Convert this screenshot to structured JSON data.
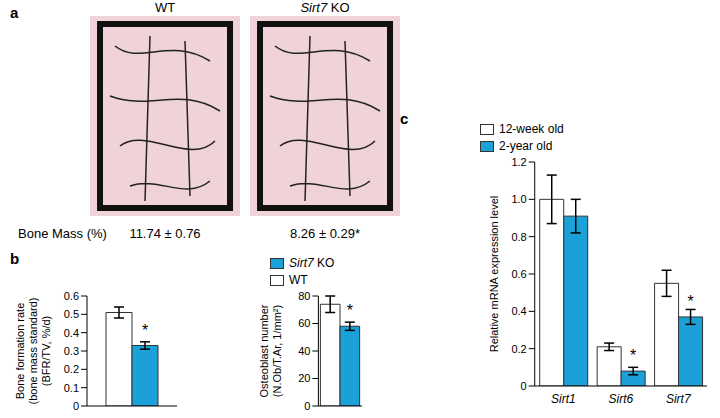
{
  "panel_a": {
    "label": "a",
    "groups": [
      "WT",
      "Sirt7 KO"
    ],
    "row_label": "Bone Mass (%)",
    "values": [
      "11.74 ± 0.76",
      "8.26 ± 0.29*"
    ]
  },
  "chart_data": [
    {
      "type": "bar",
      "panel_label": "b",
      "y_label": [
        "Bone formation rate",
        "(bone mass standard)",
        "(BFR/TV, %/d)"
      ],
      "categories": [
        null
      ],
      "series": [
        {
          "name": "WT",
          "color": "#ffffff",
          "values": [
            0.51
          ],
          "error": [
            0.03
          ]
        },
        {
          "name": "Sirt7 KO",
          "color": "#1ca0d8",
          "values": [
            0.33
          ],
          "error": [
            0.02
          ],
          "annotations": [
            "*"
          ]
        }
      ],
      "ylim": [
        0,
        0.6
      ],
      "yticks": [
        0,
        0.1,
        0.2,
        0.3,
        0.4,
        0.5,
        0.6
      ]
    },
    {
      "type": "bar",
      "y_label": [
        "Osteoblast number",
        "(N.Ob/T.Ar, 1/mm²)"
      ],
      "categories": [
        null
      ],
      "series": [
        {
          "name": "WT",
          "color": "#ffffff",
          "values": [
            74
          ],
          "error": [
            6
          ]
        },
        {
          "name": "Sirt7 KO",
          "color": "#1ca0d8",
          "values": [
            58
          ],
          "error": [
            3
          ],
          "annotations": [
            "*"
          ]
        }
      ],
      "ylim": [
        0,
        80
      ],
      "yticks": [
        0,
        20,
        40,
        60,
        80
      ],
      "legend": "upper left"
    },
    {
      "type": "bar",
      "panel_label": "c",
      "y_label": [
        "Relative mRNA expression level"
      ],
      "categories": [
        "Sirt1",
        "Sirt6",
        "Sirt7"
      ],
      "series": [
        {
          "name": "12-week old",
          "color": "#ffffff",
          "values": [
            1.0,
            0.21,
            0.55
          ],
          "error": [
            0.13,
            0.02,
            0.07
          ]
        },
        {
          "name": "2-year old",
          "color": "#1ca0d8",
          "values": [
            0.91,
            0.08,
            0.37
          ],
          "error": [
            0.09,
            0.02,
            0.04
          ],
          "annotations": [
            null,
            "*",
            "*"
          ]
        }
      ],
      "ylim": [
        0,
        1.2
      ],
      "yticks": [
        0,
        0.2,
        0.4,
        0.6,
        0.8,
        {
          "value": 1,
          "label": "1.0"
        },
        1.2
      ],
      "legend": "upper left"
    }
  ]
}
